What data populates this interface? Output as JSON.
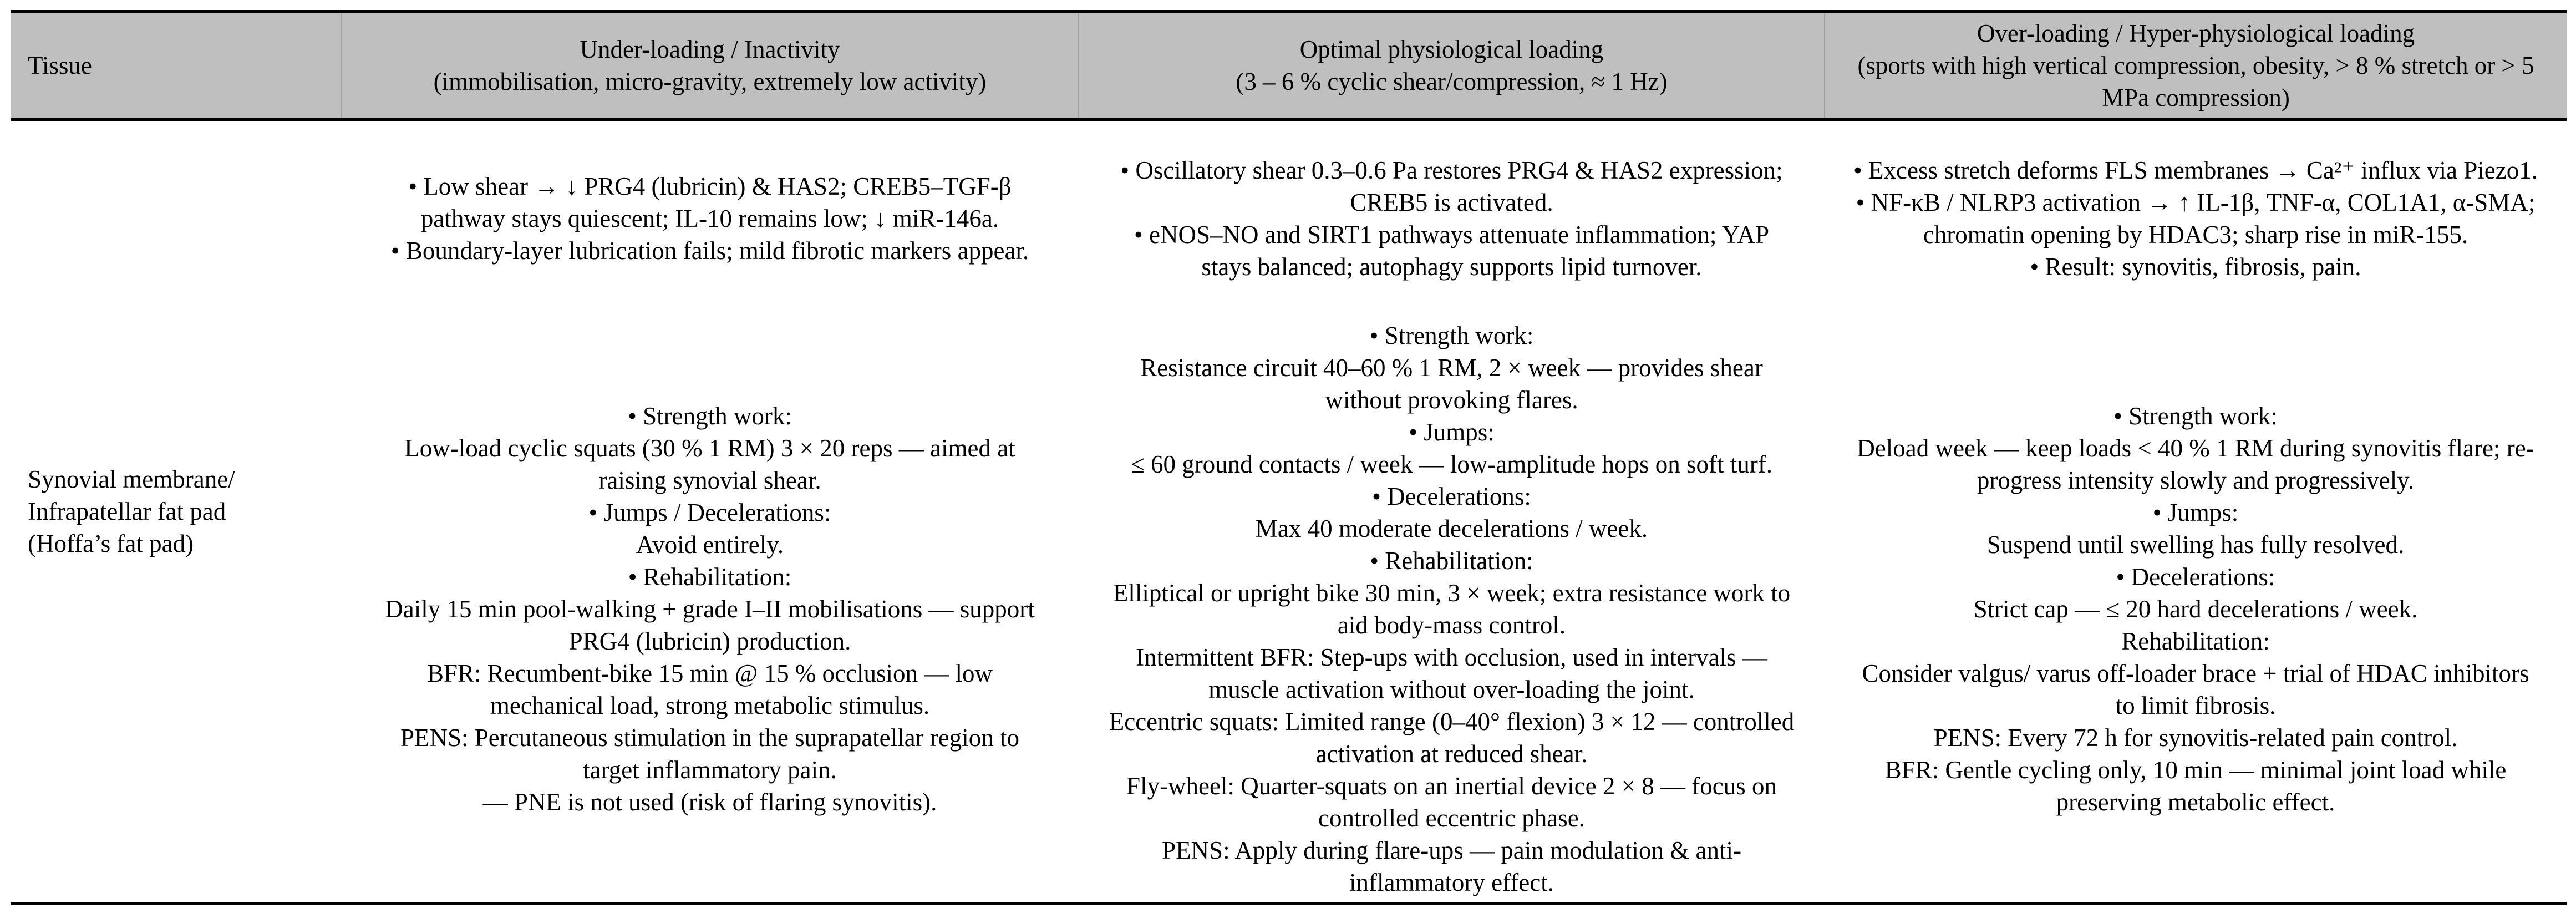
{
  "colors": {
    "page_bg": "#ffffff",
    "header_bg": "#bfbfbf",
    "rule": "#000000",
    "header_divider": "#a0a0a0",
    "text": "#000000"
  },
  "header": {
    "tissue": {
      "label": "Tissue"
    },
    "under": {
      "label": "Under-loading / Inactivity",
      "sub": "(immobilisation, micro-gravity, extremely low activity)"
    },
    "optimal": {
      "label": "Optimal physiological loading",
      "sub": "(3 – 6 % cyclic shear/compression, ≈ 1 Hz)"
    },
    "over": {
      "label": "Over-loading / Hyper-physiological loading",
      "sub": "(sports with high vertical compression, obesity, > 8 % stretch or > 5 MPa compression)"
    }
  },
  "row": {
    "tissue_lines": [
      "Synovial membrane/",
      "Infrapatellar fat pad",
      "(Hoffa’s fat pad)"
    ],
    "under": {
      "mechanisms": [
        "• Low shear → ↓ PRG4 (lubricin) & HAS2; CREB5–TGF-β pathway stays quiescent; IL-10 remains low; ↓ miR-146a.",
        "• Boundary-layer lubrication fails; mild fibrotic markers appear."
      ],
      "training": [
        "• Strength work:",
        "Low-load cyclic squats (30 % 1 RM) 3 × 20 reps — aimed at raising synovial shear.",
        "• Jumps / Decelerations:",
        "Avoid entirely.",
        "• Rehabilitation:",
        "Daily 15 min pool-walking + grade I–II mobilisations — support PRG4 (lubricin) production.",
        "BFR: Recumbent-bike 15 min @ 15 % occlusion — low mechanical load, strong metabolic stimulus.",
        "PENS: Percutaneous stimulation in the suprapatellar region to target inflammatory pain.",
        "— PNE is not used (risk of flaring synovitis)."
      ]
    },
    "optimal": {
      "mechanisms": [
        "• Oscillatory shear 0.3–0.6 Pa restores PRG4 & HAS2 expression; CREB5 is activated.",
        "• eNOS–NO and SIRT1 pathways attenuate inflammation; YAP stays balanced; autophagy supports lipid turnover."
      ],
      "training": [
        "• Strength work:",
        "Resistance circuit 40–60 % 1 RM, 2 × week — provides shear without provoking flares.",
        "• Jumps:",
        "≤ 60 ground contacts / week — low-amplitude hops on soft turf.",
        "• Decelerations:",
        "Max 40 moderate decelerations / week.",
        "• Rehabilitation:",
        "Elliptical or upright bike 30 min, 3 × week; extra resistance work to aid body-mass control.",
        "Intermittent BFR: Step-ups with occlusion, used in intervals — muscle activation without over-loading the joint.",
        "Eccentric squats: Limited range (0–40° flexion) 3 × 12 — controlled activation at reduced shear.",
        "Fly-wheel: Quarter-squats on an inertial device 2 × 8 — focus on controlled eccentric phase.",
        "PENS: Apply during flare-ups — pain modulation & anti-inflammatory effect."
      ]
    },
    "over": {
      "mechanisms": [
        "• Excess stretch deforms FLS membranes → Ca²⁺ influx via Piezo1.",
        "• NF-κB / NLRP3 activation → ↑ IL-1β, TNF-α, COL1A1, α-SMA; chromatin opening by HDAC3; sharp rise in miR-155.",
        "• Result: synovitis, fibrosis, pain."
      ],
      "training": [
        "• Strength work:",
        "Deload week — keep loads < 40 % 1 RM during synovitis flare; re-progress intensity slowly and progressively.",
        "• Jumps:",
        "Suspend until swelling has fully resolved.",
        "• Decelerations:",
        "Strict cap — ≤ 20 hard decelerations / week.",
        "Rehabilitation:",
        "Consider valgus/ varus off-loader brace + trial of HDAC inhibitors to limit fibrosis.",
        "PENS: Every 72 h for synovitis-related pain control.",
        "BFR: Gentle cycling only, 10 min — minimal joint load while preserving metabolic effect."
      ]
    }
  }
}
